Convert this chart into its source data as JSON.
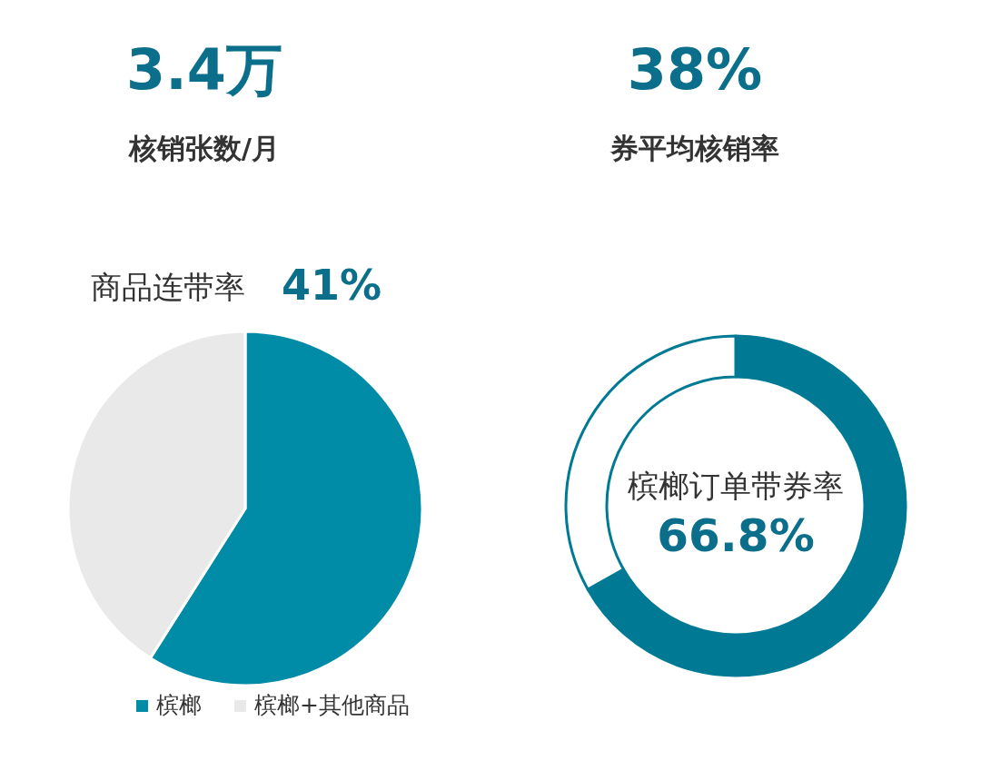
{
  "chart_data": [
    {
      "type": "other",
      "title": "3.4万",
      "subtitle": "核销张数/月"
    },
    {
      "type": "other",
      "title": "38%",
      "subtitle": "券平均核销率"
    },
    {
      "type": "pie",
      "title": "商品连带率",
      "subtitle": "41%",
      "categories": [
        "槟榔",
        "槟榔+其他商品"
      ],
      "values": [
        59,
        41
      ],
      "colors": [
        "#008ba7",
        "#e9e9e9"
      ],
      "legend": "bottom"
    },
    {
      "type": "donut",
      "categories": [
        null,
        null
      ],
      "values": [
        66.8,
        33.2
      ],
      "colors": [
        "#007a94",
        "#ffffff"
      ],
      "annotations": [
        "槟榔订单带券率",
        "66.8%"
      ]
    }
  ]
}
